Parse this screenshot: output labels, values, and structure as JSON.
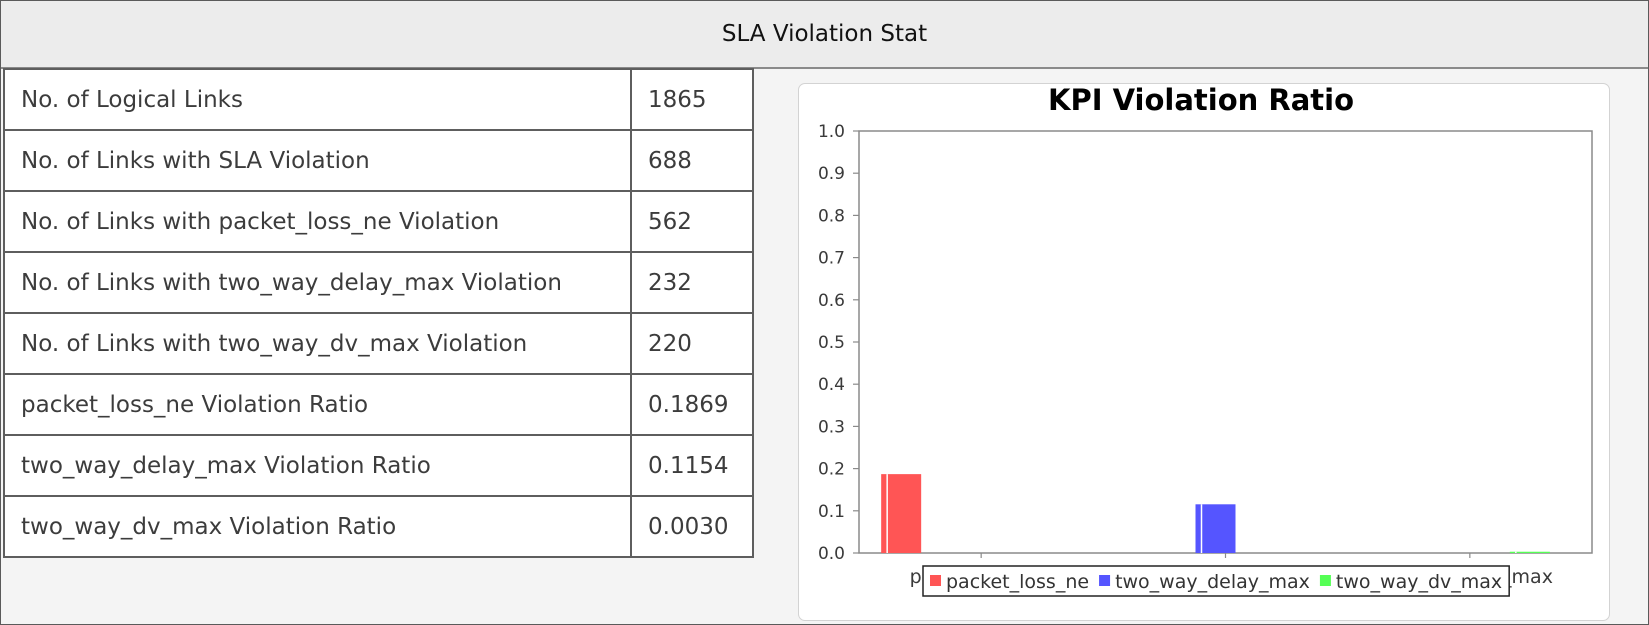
{
  "panel": {
    "title": "SLA Violation Stat"
  },
  "stats": {
    "rows": [
      {
        "label": "No. of Logical Links",
        "value": "1865"
      },
      {
        "label": "No. of Links with SLA Violation",
        "value": "688"
      },
      {
        "label": "No. of Links with packet_loss_ne Violation",
        "value": "562"
      },
      {
        "label": "No. of Links with two_way_delay_max Violation",
        "value": "232"
      },
      {
        "label": "No. of Links with two_way_dv_max Violation",
        "value": "220"
      },
      {
        "label": "packet_loss_ne Violation Ratio",
        "value": "0.1869"
      },
      {
        "label": "two_way_delay_max Violation Ratio",
        "value": "0.1154"
      },
      {
        "label": "two_way_dv_max Violation Ratio",
        "value": "0.0030"
      }
    ]
  },
  "chart_data": {
    "type": "bar",
    "title": "KPI Violation Ratio",
    "xlabel": "",
    "ylabel": "",
    "ylim": [
      0,
      1.0
    ],
    "yticks": [
      "0.0",
      "0.1",
      "0.2",
      "0.3",
      "0.4",
      "0.5",
      "0.6",
      "0.7",
      "0.8",
      "0.9",
      "1.0"
    ],
    "categories": [
      "packet_loss_ne",
      "two_way_delay...",
      "two_way_dv_max"
    ],
    "series": [
      {
        "name": "packet_loss_ne",
        "color": "#ff5555",
        "values": [
          0.1869,
          0,
          0
        ]
      },
      {
        "name": "two_way_delay_max",
        "color": "#5555ff",
        "values": [
          0,
          0.1154,
          0
        ]
      },
      {
        "name": "two_way_dv_max",
        "color": "#55ff55",
        "values": [
          0,
          0,
          0.003
        ]
      }
    ],
    "grid": false,
    "legend_position": "bottom"
  }
}
